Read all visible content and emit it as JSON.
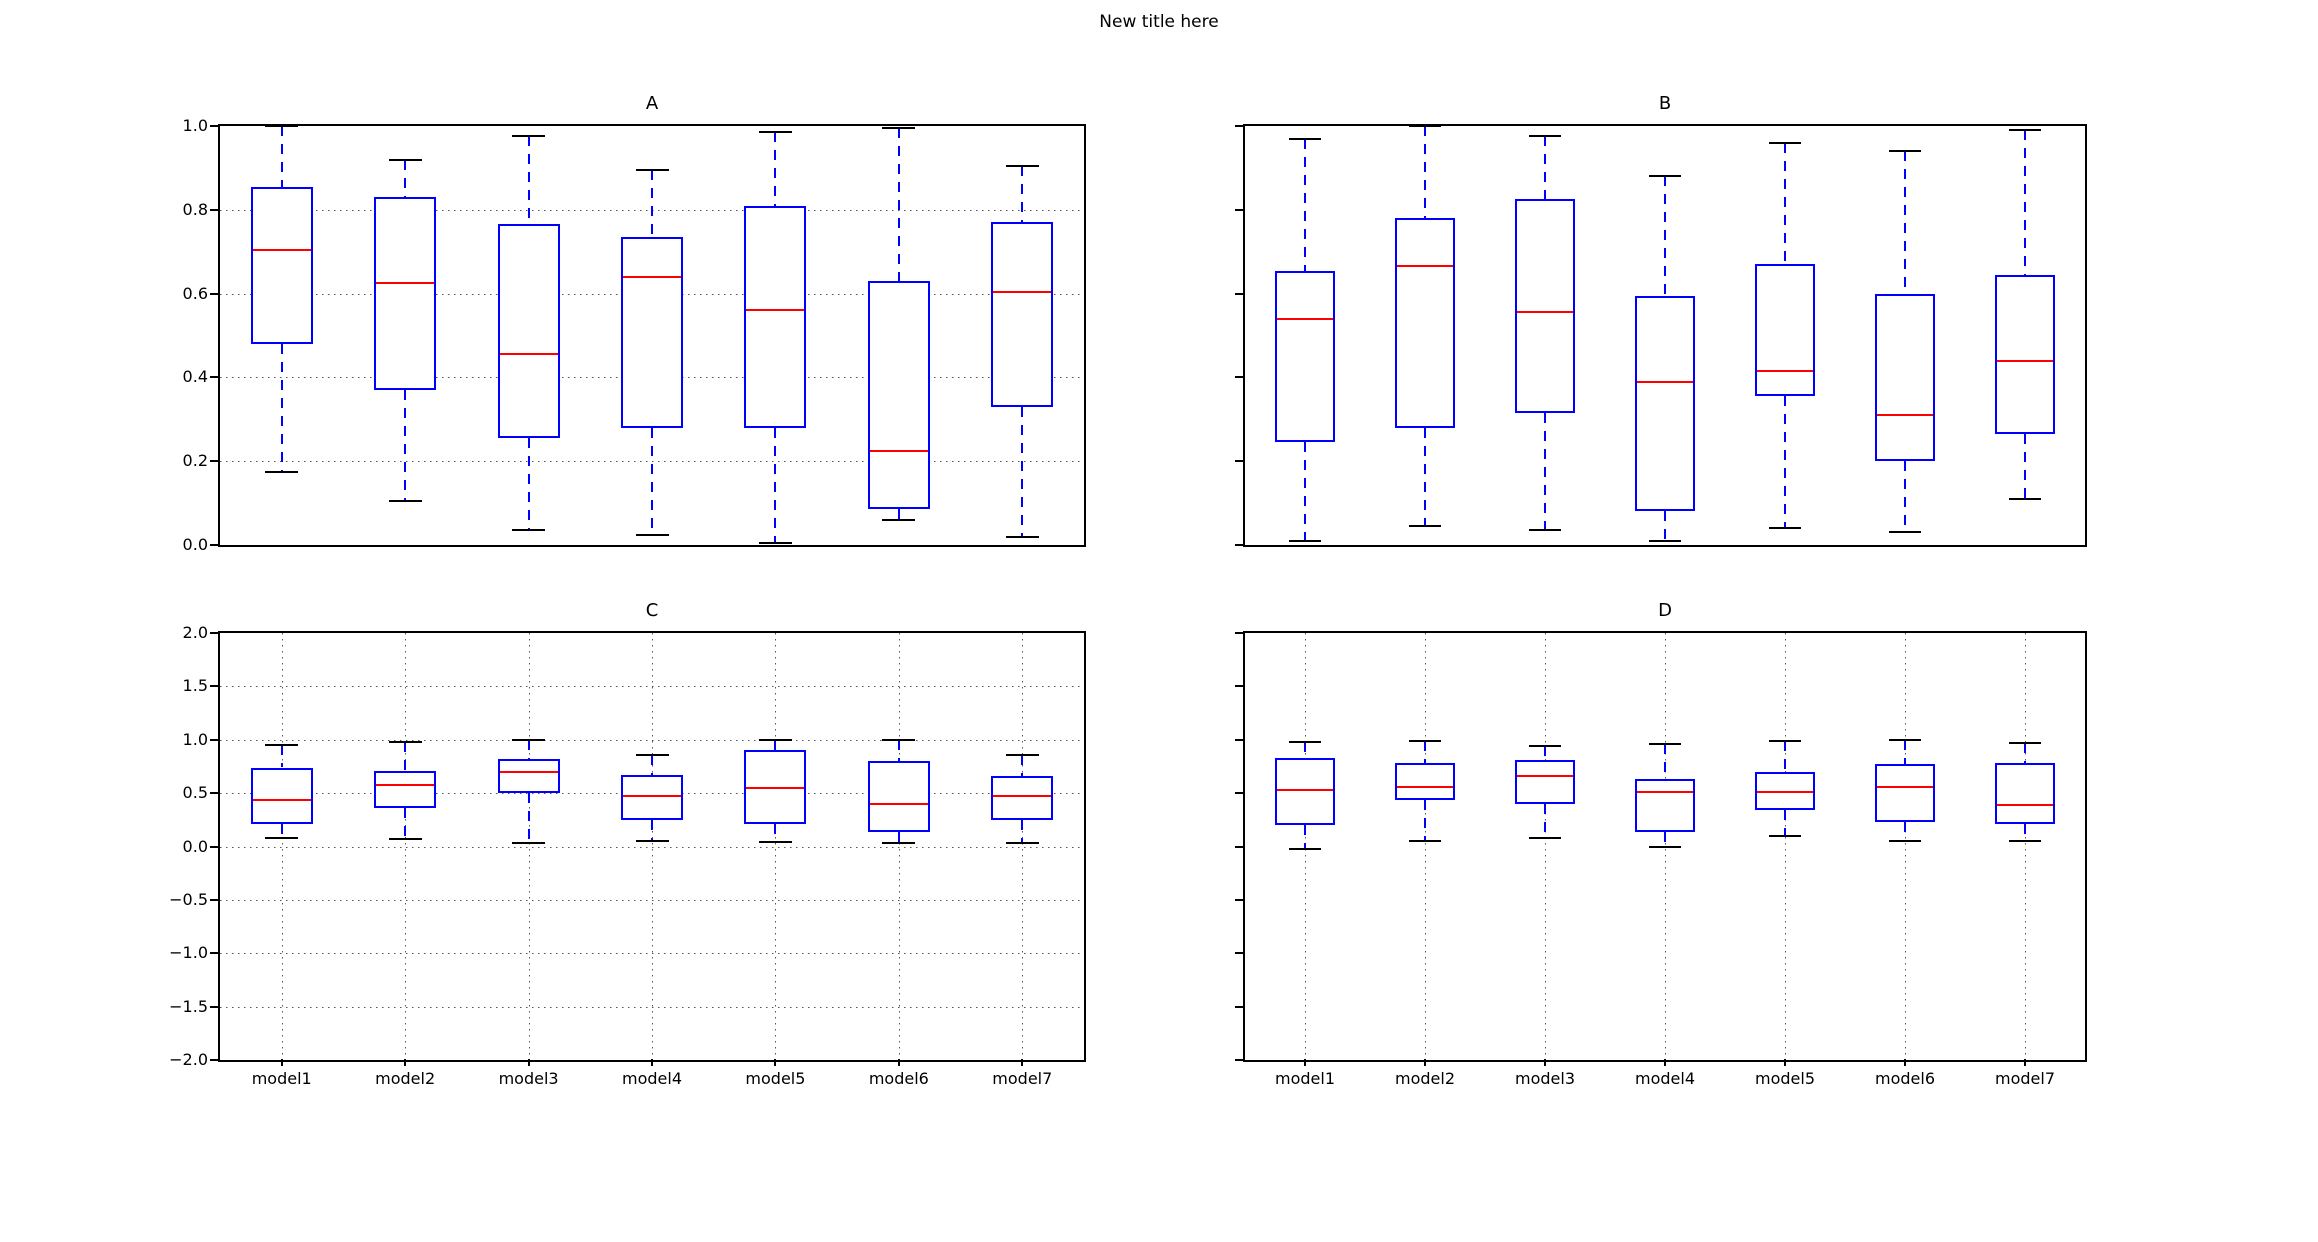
{
  "figure": {
    "title": "New title here"
  },
  "style": {
    "background": "#ffffff",
    "spine_color": "#000000",
    "box_color": "#0000ff",
    "median_color": "#ff0000",
    "whisker_color": "#0000ff",
    "cap_color": "#000000",
    "grid_color": "#555555"
  },
  "chart_data": [
    {
      "type": "box",
      "title": "A",
      "categories": [
        "model1",
        "model2",
        "model3",
        "model4",
        "model5",
        "model6",
        "model7"
      ],
      "ylim": [
        0.0,
        1.0
      ],
      "ytick_values": [
        0.0,
        0.2,
        0.4,
        0.6,
        0.8,
        1.0
      ],
      "ytick_labels": [
        "0.0",
        "0.2",
        "0.4",
        "0.6",
        "0.8",
        "1.0"
      ],
      "show_ytick_labels": true,
      "show_xtick_labels": false,
      "grid_horizontal": true,
      "grid_vertical": false,
      "boxes": [
        {
          "label": "model1",
          "whislo": 0.175,
          "q1": 0.48,
          "med": 0.705,
          "q3": 0.855,
          "whishi": 1.0
        },
        {
          "label": "model2",
          "whislo": 0.105,
          "q1": 0.37,
          "med": 0.625,
          "q3": 0.83,
          "whishi": 0.92
        },
        {
          "label": "model3",
          "whislo": 0.035,
          "q1": 0.255,
          "med": 0.455,
          "q3": 0.765,
          "whishi": 0.975
        },
        {
          "label": "model4",
          "whislo": 0.025,
          "q1": 0.28,
          "med": 0.64,
          "q3": 0.735,
          "whishi": 0.895
        },
        {
          "label": "model5",
          "whislo": 0.005,
          "q1": 0.28,
          "med": 0.56,
          "q3": 0.81,
          "whishi": 0.985
        },
        {
          "label": "model6",
          "whislo": 0.06,
          "q1": 0.085,
          "med": 0.225,
          "q3": 0.63,
          "whishi": 0.995
        },
        {
          "label": "model7",
          "whislo": 0.02,
          "q1": 0.33,
          "med": 0.605,
          "q3": 0.77,
          "whishi": 0.905
        }
      ]
    },
    {
      "type": "box",
      "title": "B",
      "categories": [
        "model1",
        "model2",
        "model3",
        "model4",
        "model5",
        "model6",
        "model7"
      ],
      "ylim": [
        0.0,
        1.0
      ],
      "ytick_values": [
        0.0,
        0.2,
        0.4,
        0.6,
        0.8,
        1.0
      ],
      "ytick_labels": [],
      "show_ytick_labels": false,
      "show_xtick_labels": false,
      "grid_horizontal": false,
      "grid_vertical": false,
      "boxes": [
        {
          "label": "model1",
          "whislo": 0.01,
          "q1": 0.245,
          "med": 0.54,
          "q3": 0.655,
          "whishi": 0.97
        },
        {
          "label": "model2",
          "whislo": 0.045,
          "q1": 0.28,
          "med": 0.665,
          "q3": 0.78,
          "whishi": 1.0
        },
        {
          "label": "model3",
          "whislo": 0.035,
          "q1": 0.315,
          "med": 0.555,
          "q3": 0.825,
          "whishi": 0.975
        },
        {
          "label": "model4",
          "whislo": 0.01,
          "q1": 0.08,
          "med": 0.39,
          "q3": 0.595,
          "whishi": 0.88
        },
        {
          "label": "model5",
          "whislo": 0.04,
          "q1": 0.355,
          "med": 0.415,
          "q3": 0.67,
          "whishi": 0.96
        },
        {
          "label": "model6",
          "whislo": 0.03,
          "q1": 0.2,
          "med": 0.31,
          "q3": 0.6,
          "whishi": 0.94
        },
        {
          "label": "model7",
          "whislo": 0.11,
          "q1": 0.265,
          "med": 0.44,
          "q3": 0.645,
          "whishi": 0.99
        }
      ]
    },
    {
      "type": "box",
      "title": "C",
      "categories": [
        "model1",
        "model2",
        "model3",
        "model4",
        "model5",
        "model6",
        "model7"
      ],
      "ylim": [
        -2.0,
        2.0
      ],
      "ytick_values": [
        2.0,
        1.5,
        1.0,
        0.5,
        0.0,
        -0.5,
        -1.0,
        -1.5,
        -2.0
      ],
      "ytick_labels": [
        "2.0",
        "1.5",
        "1.0",
        "0.5",
        "0.0",
        "−0.5",
        "−1.0",
        "−1.5",
        "−2.0"
      ],
      "show_ytick_labels": true,
      "show_xtick_labels": true,
      "grid_horizontal": true,
      "grid_vertical": true,
      "boxes": [
        {
          "label": "model1",
          "whislo": 0.08,
          "q1": 0.21,
          "med": 0.435,
          "q3": 0.74,
          "whishi": 0.95
        },
        {
          "label": "model2",
          "whislo": 0.07,
          "q1": 0.365,
          "med": 0.575,
          "q3": 0.71,
          "whishi": 0.975
        },
        {
          "label": "model3",
          "whislo": 0.035,
          "q1": 0.5,
          "med": 0.7,
          "q3": 0.82,
          "whishi": 1.0
        },
        {
          "label": "model4",
          "whislo": 0.05,
          "q1": 0.25,
          "med": 0.47,
          "q3": 0.67,
          "whishi": 0.855
        },
        {
          "label": "model5",
          "whislo": 0.045,
          "q1": 0.21,
          "med": 0.55,
          "q3": 0.9,
          "whishi": 1.0
        },
        {
          "label": "model6",
          "whislo": 0.03,
          "q1": 0.135,
          "med": 0.395,
          "q3": 0.8,
          "whishi": 1.0
        },
        {
          "label": "model7",
          "whislo": 0.035,
          "q1": 0.25,
          "med": 0.47,
          "q3": 0.66,
          "whishi": 0.855
        }
      ]
    },
    {
      "type": "box",
      "title": "D",
      "categories": [
        "model1",
        "model2",
        "model3",
        "model4",
        "model5",
        "model6",
        "model7"
      ],
      "ylim": [
        -2.0,
        2.0
      ],
      "ytick_values": [
        2.0,
        1.5,
        1.0,
        0.5,
        0.0,
        -0.5,
        -1.0,
        -1.5,
        -2.0
      ],
      "ytick_labels": [],
      "show_ytick_labels": false,
      "show_xtick_labels": true,
      "grid_horizontal": false,
      "grid_vertical": true,
      "boxes": [
        {
          "label": "model1",
          "whislo": -0.02,
          "q1": 0.2,
          "med": 0.53,
          "q3": 0.83,
          "whishi": 0.98
        },
        {
          "label": "model2",
          "whislo": 0.05,
          "q1": 0.44,
          "med": 0.56,
          "q3": 0.78,
          "whishi": 0.99
        },
        {
          "label": "model3",
          "whislo": 0.08,
          "q1": 0.4,
          "med": 0.66,
          "q3": 0.81,
          "whishi": 0.94
        },
        {
          "label": "model4",
          "whislo": 0.0,
          "q1": 0.14,
          "med": 0.51,
          "q3": 0.63,
          "whishi": 0.96
        },
        {
          "label": "model5",
          "whislo": 0.1,
          "q1": 0.34,
          "med": 0.51,
          "q3": 0.7,
          "whishi": 0.99
        },
        {
          "label": "model6",
          "whislo": 0.05,
          "q1": 0.23,
          "med": 0.56,
          "q3": 0.77,
          "whishi": 1.0
        },
        {
          "label": "model7",
          "whislo": 0.05,
          "q1": 0.21,
          "med": 0.39,
          "q3": 0.78,
          "whishi": 0.97
        }
      ]
    }
  ]
}
